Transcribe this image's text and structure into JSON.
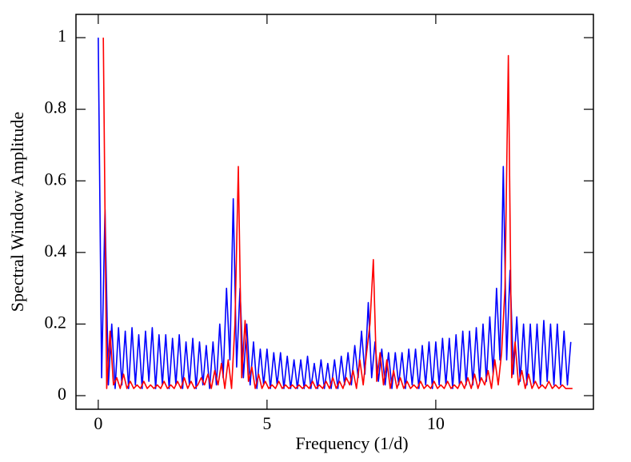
{
  "chart_data": {
    "type": "line",
    "xlabel": "Frequency (1/d)",
    "ylabel": "Spectral Window Amplitude",
    "xlim": [
      -0.66,
      14.67
    ],
    "ylim": [
      -0.038,
      1.065
    ],
    "xticks": [
      0,
      5,
      10
    ],
    "yticks": [
      0,
      0.2,
      0.4,
      0.6,
      0.8,
      1
    ],
    "series": [
      {
        "color": "#0000ff",
        "x": [
          0,
          0.1,
          0.2,
          0.3,
          0.4,
          0.5,
          0.6,
          0.7,
          0.8,
          0.9,
          1,
          1.1,
          1.2,
          1.3,
          1.4,
          1.5,
          1.6,
          1.7,
          1.8,
          1.9,
          2,
          2.1,
          2.2,
          2.3,
          2.4,
          2.5,
          2.6,
          2.7,
          2.8,
          2.9,
          3,
          3.1,
          3.2,
          3.3,
          3.4,
          3.5,
          3.6,
          3.7,
          3.8,
          3.9,
          4,
          4.1,
          4.2,
          4.3,
          4.4,
          4.5,
          4.6,
          4.7,
          4.8,
          4.9,
          5,
          5.1,
          5.2,
          5.3,
          5.4,
          5.5,
          5.6,
          5.7,
          5.8,
          5.9,
          6,
          6.1,
          6.2,
          6.3,
          6.4,
          6.5,
          6.6,
          6.7,
          6.8,
          6.9,
          7,
          7.1,
          7.2,
          7.3,
          7.4,
          7.5,
          7.6,
          7.7,
          7.8,
          7.9,
          8,
          8.1,
          8.2,
          8.3,
          8.4,
          8.5,
          8.6,
          8.7,
          8.8,
          8.9,
          9,
          9.1,
          9.2,
          9.3,
          9.4,
          9.5,
          9.6,
          9.7,
          9.8,
          9.9,
          10,
          10.1,
          10.2,
          10.3,
          10.4,
          10.5,
          10.6,
          10.7,
          10.8,
          10.9,
          11,
          11.1,
          11.2,
          11.3,
          11.4,
          11.5,
          11.6,
          11.7,
          11.8,
          11.9,
          12,
          12.1,
          12.2,
          12.3,
          12.4,
          12.5,
          12.6,
          12.7,
          12.8,
          12.9,
          13,
          13.1,
          13.2,
          13.3,
          13.4,
          13.5,
          13.6,
          13.7,
          13.8,
          13.9,
          14
        ],
        "values": [
          1.0,
          0.05,
          0.52,
          0.03,
          0.2,
          0.02,
          0.19,
          0.03,
          0.18,
          0.02,
          0.19,
          0.03,
          0.17,
          0.02,
          0.18,
          0.04,
          0.19,
          0.02,
          0.17,
          0.03,
          0.17,
          0.02,
          0.16,
          0.03,
          0.17,
          0.02,
          0.15,
          0.03,
          0.16,
          0.02,
          0.15,
          0.03,
          0.14,
          0.02,
          0.15,
          0.03,
          0.2,
          0.05,
          0.3,
          0.1,
          0.55,
          0.08,
          0.3,
          0.05,
          0.2,
          0.03,
          0.15,
          0.02,
          0.13,
          0.03,
          0.13,
          0.02,
          0.12,
          0.03,
          0.12,
          0.02,
          0.11,
          0.02,
          0.1,
          0.02,
          0.1,
          0.02,
          0.11,
          0.02,
          0.09,
          0.02,
          0.1,
          0.02,
          0.09,
          0.02,
          0.1,
          0.02,
          0.11,
          0.03,
          0.12,
          0.03,
          0.14,
          0.05,
          0.18,
          0.06,
          0.26,
          0.05,
          0.15,
          0.04,
          0.13,
          0.03,
          0.12,
          0.02,
          0.12,
          0.03,
          0.12,
          0.02,
          0.13,
          0.03,
          0.13,
          0.02,
          0.14,
          0.03,
          0.15,
          0.02,
          0.15,
          0.03,
          0.16,
          0.03,
          0.16,
          0.02,
          0.17,
          0.03,
          0.18,
          0.03,
          0.18,
          0.03,
          0.19,
          0.04,
          0.2,
          0.04,
          0.22,
          0.06,
          0.3,
          0.1,
          0.64,
          0.1,
          0.35,
          0.06,
          0.22,
          0.04,
          0.2,
          0.03,
          0.2,
          0.03,
          0.2,
          0.03,
          0.21,
          0.04,
          0.2,
          0.03,
          0.2,
          0.03,
          0.18,
          0.03,
          0.15
        ]
      },
      {
        "color": "#ff0000",
        "x": [
          0.15,
          0.25,
          0.35,
          0.45,
          0.55,
          0.65,
          0.75,
          0.85,
          0.95,
          1.05,
          1.15,
          1.25,
          1.35,
          1.45,
          1.55,
          1.65,
          1.75,
          1.85,
          1.95,
          2.05,
          2.15,
          2.25,
          2.35,
          2.45,
          2.55,
          2.65,
          2.75,
          2.85,
          2.95,
          3.05,
          3.15,
          3.25,
          3.35,
          3.45,
          3.55,
          3.65,
          3.75,
          3.85,
          3.95,
          4.05,
          4.15,
          4.25,
          4.35,
          4.45,
          4.55,
          4.65,
          4.75,
          4.85,
          4.95,
          5.05,
          5.15,
          5.25,
          5.35,
          5.45,
          5.55,
          5.65,
          5.75,
          5.85,
          5.95,
          6.05,
          6.15,
          6.25,
          6.35,
          6.45,
          6.55,
          6.65,
          6.75,
          6.85,
          6.95,
          7.05,
          7.15,
          7.25,
          7.35,
          7.45,
          7.55,
          7.65,
          7.75,
          7.85,
          7.95,
          8.05,
          8.15,
          8.25,
          8.35,
          8.45,
          8.55,
          8.65,
          8.75,
          8.85,
          8.95,
          9.05,
          9.15,
          9.25,
          9.35,
          9.45,
          9.55,
          9.65,
          9.75,
          9.85,
          9.95,
          10.05,
          10.15,
          10.25,
          10.35,
          10.45,
          10.55,
          10.65,
          10.75,
          10.85,
          10.95,
          11.05,
          11.15,
          11.25,
          11.35,
          11.45,
          11.55,
          11.65,
          11.75,
          11.85,
          11.95,
          12.05,
          12.15,
          12.25,
          12.35,
          12.45,
          12.55,
          12.65,
          12.75,
          12.85,
          12.95,
          13.05,
          13.15,
          13.25,
          13.35,
          13.45,
          13.55,
          13.65,
          13.75,
          13.85,
          13.95,
          14.05
        ],
        "values": [
          1.0,
          0.02,
          0.18,
          0.03,
          0.05,
          0.02,
          0.06,
          0.02,
          0.04,
          0.02,
          0.03,
          0.02,
          0.04,
          0.02,
          0.03,
          0.02,
          0.03,
          0.02,
          0.04,
          0.02,
          0.03,
          0.02,
          0.04,
          0.02,
          0.05,
          0.02,
          0.04,
          0.02,
          0.03,
          0.05,
          0.03,
          0.06,
          0.02,
          0.07,
          0.03,
          0.09,
          0.02,
          0.1,
          0.02,
          0.2,
          0.64,
          0.05,
          0.21,
          0.04,
          0.08,
          0.02,
          0.06,
          0.02,
          0.04,
          0.02,
          0.03,
          0.02,
          0.04,
          0.02,
          0.03,
          0.02,
          0.03,
          0.02,
          0.03,
          0.02,
          0.03,
          0.02,
          0.04,
          0.02,
          0.03,
          0.02,
          0.04,
          0.02,
          0.05,
          0.02,
          0.04,
          0.02,
          0.05,
          0.03,
          0.07,
          0.02,
          0.1,
          0.03,
          0.12,
          0.2,
          0.38,
          0.04,
          0.12,
          0.03,
          0.1,
          0.02,
          0.07,
          0.02,
          0.05,
          0.02,
          0.04,
          0.02,
          0.03,
          0.02,
          0.04,
          0.02,
          0.03,
          0.02,
          0.04,
          0.02,
          0.03,
          0.02,
          0.04,
          0.02,
          0.03,
          0.02,
          0.04,
          0.02,
          0.05,
          0.02,
          0.06,
          0.02,
          0.05,
          0.03,
          0.07,
          0.02,
          0.1,
          0.03,
          0.12,
          0.3,
          0.95,
          0.05,
          0.15,
          0.03,
          0.07,
          0.02,
          0.06,
          0.02,
          0.04,
          0.02,
          0.03,
          0.02,
          0.04,
          0.02,
          0.03,
          0.02,
          0.03,
          0.02,
          0.02,
          0.02
        ]
      }
    ]
  }
}
